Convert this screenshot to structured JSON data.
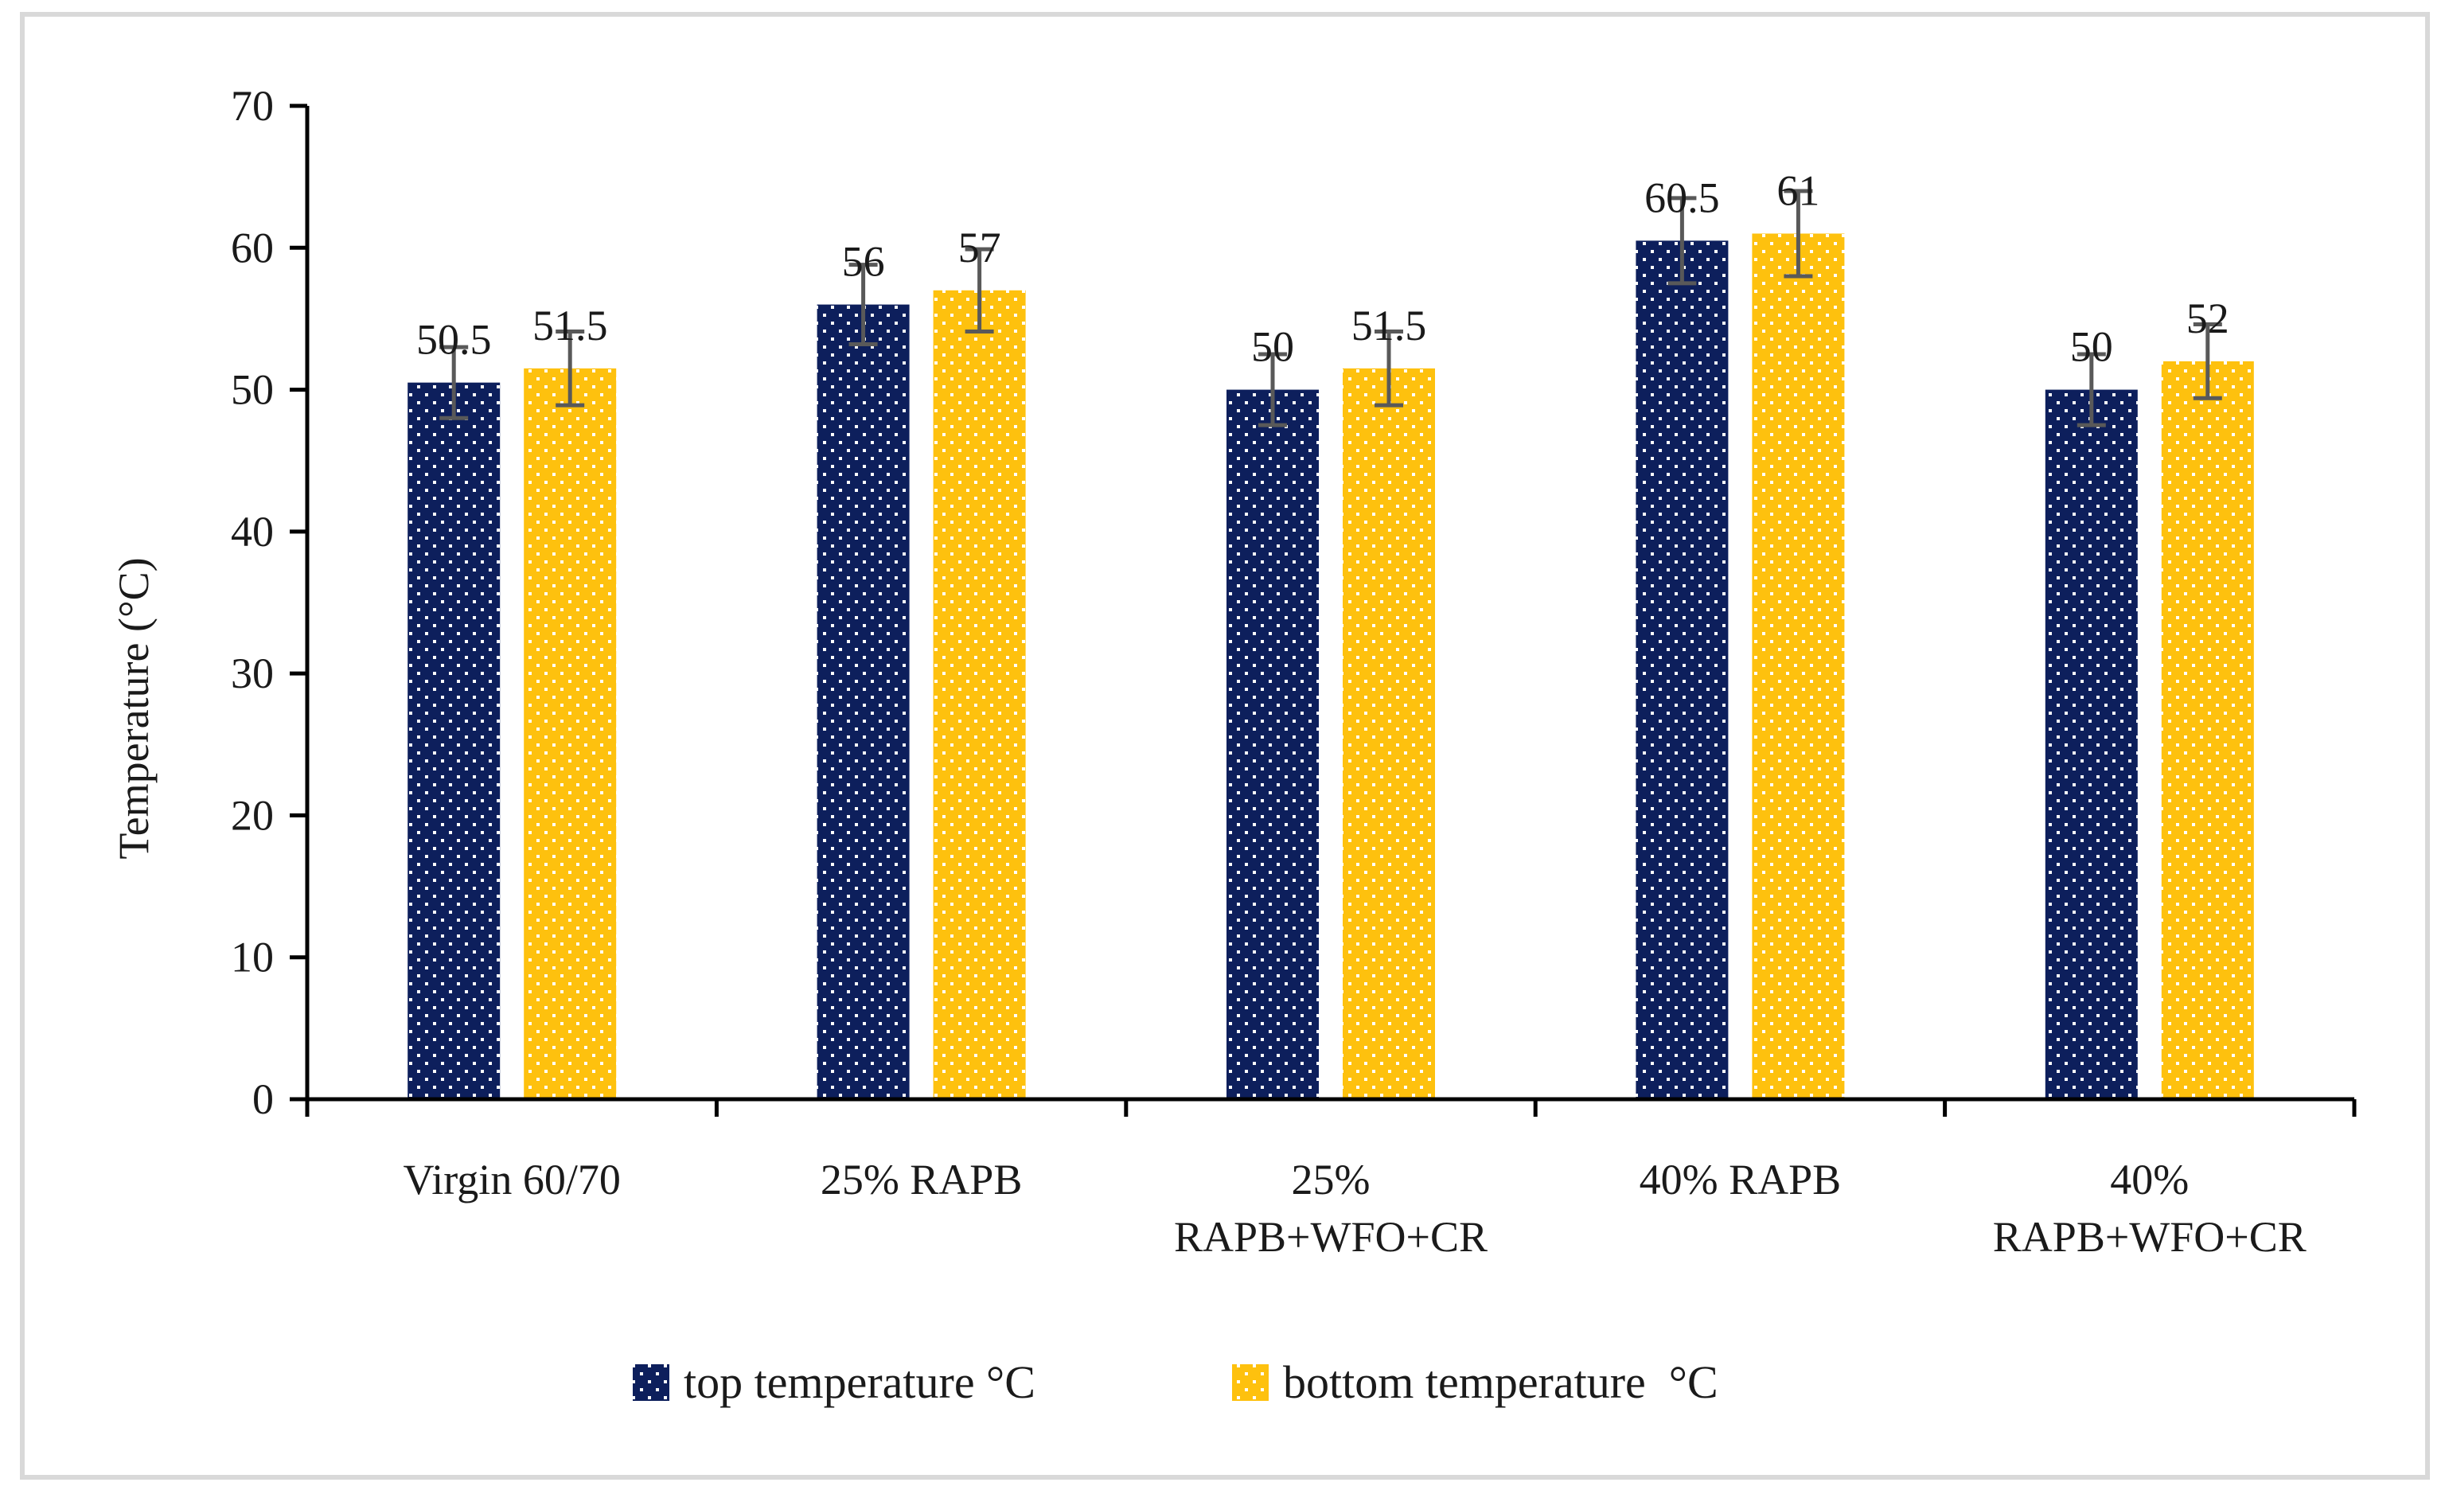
{
  "chart_data": {
    "type": "bar",
    "title": "",
    "xlabel": "",
    "ylabel": "Temperature (°C)",
    "ylim": [
      0,
      70
    ],
    "yticks": [
      0,
      10,
      20,
      30,
      40,
      50,
      60,
      70
    ],
    "grid": false,
    "legend_position": "bottom",
    "categories": [
      [
        "Virgin 60/70"
      ],
      [
        "25% RAPB"
      ],
      [
        "25%",
        "RAPB+WFO+CR"
      ],
      [
        "40% RAPB"
      ],
      [
        "40%",
        "RAPB+WFO+CR"
      ]
    ],
    "series": [
      {
        "name": "top temperature °C",
        "color": "#0d1f5c",
        "pattern": "white-dots",
        "values": [
          50.5,
          56,
          50,
          60.5,
          50
        ],
        "labels": [
          "50.5",
          "56",
          "50",
          "60.5",
          "50"
        ],
        "error": [
          2.5,
          2.8,
          2.5,
          3,
          2.5
        ]
      },
      {
        "name": "bottom temperature  °C",
        "color": "#fec10e",
        "pattern": "white-dots",
        "values": [
          51.5,
          57,
          51.5,
          61,
          52
        ],
        "labels": [
          "51.5",
          "57",
          "51.5",
          "61",
          "52"
        ],
        "error": [
          2.6,
          2.9,
          2.6,
          3,
          2.6
        ]
      }
    ]
  }
}
